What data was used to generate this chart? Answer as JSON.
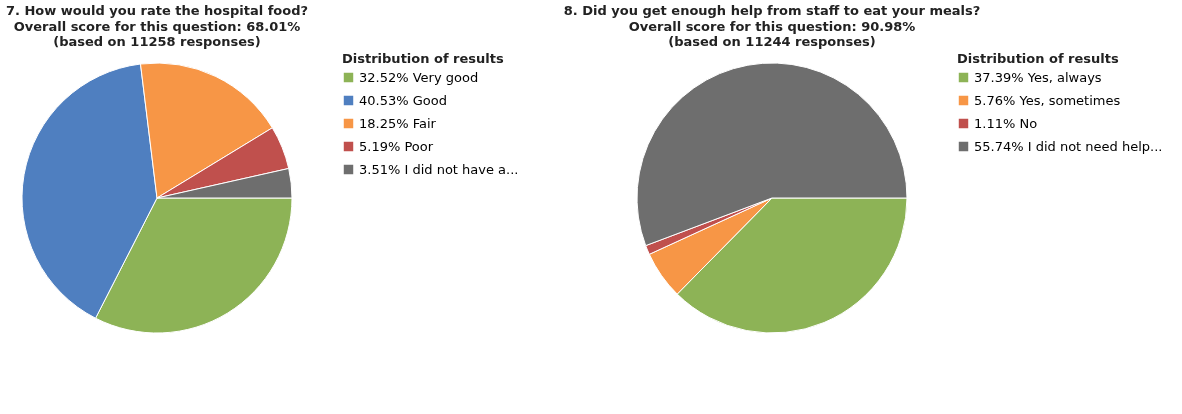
{
  "chart_data": [
    {
      "type": "pie",
      "title": "7. How would you rate the hospital food?",
      "subtitle": "Overall score for this question: 68.01%\n(based on 11258 responses)",
      "legend_title": "Distribution of results",
      "legend": "right",
      "categories": [
        "Very good",
        "Good",
        "Fair",
        "Poor",
        "I did not have a..."
      ],
      "values": [
        32.52,
        40.53,
        18.25,
        5.19,
        3.51
      ],
      "value_labels": [
        "32.52%",
        "40.53%",
        "18.25%",
        "5.19%",
        "3.51%"
      ],
      "colors": [
        "#8db356",
        "#4f7fc0",
        "#f79646",
        "#c0504d",
        "#6e6e6e"
      ]
    },
    {
      "type": "pie",
      "title": "8. Did you get enough help from staff to eat your meals?",
      "subtitle": "Overall score for this question: 90.98%\n(based on 11244 responses)",
      "legend_title": "Distribution of results",
      "legend": "right",
      "categories": [
        "Yes, always",
        "Yes, sometimes",
        "No",
        "I did not need help..."
      ],
      "values": [
        37.39,
        5.76,
        1.11,
        55.74
      ],
      "value_labels": [
        "37.39%",
        "5.76%",
        "1.11%",
        "55.74%"
      ],
      "colors": [
        "#8db356",
        "#f79646",
        "#c0504d",
        "#6e6e6e"
      ]
    }
  ]
}
